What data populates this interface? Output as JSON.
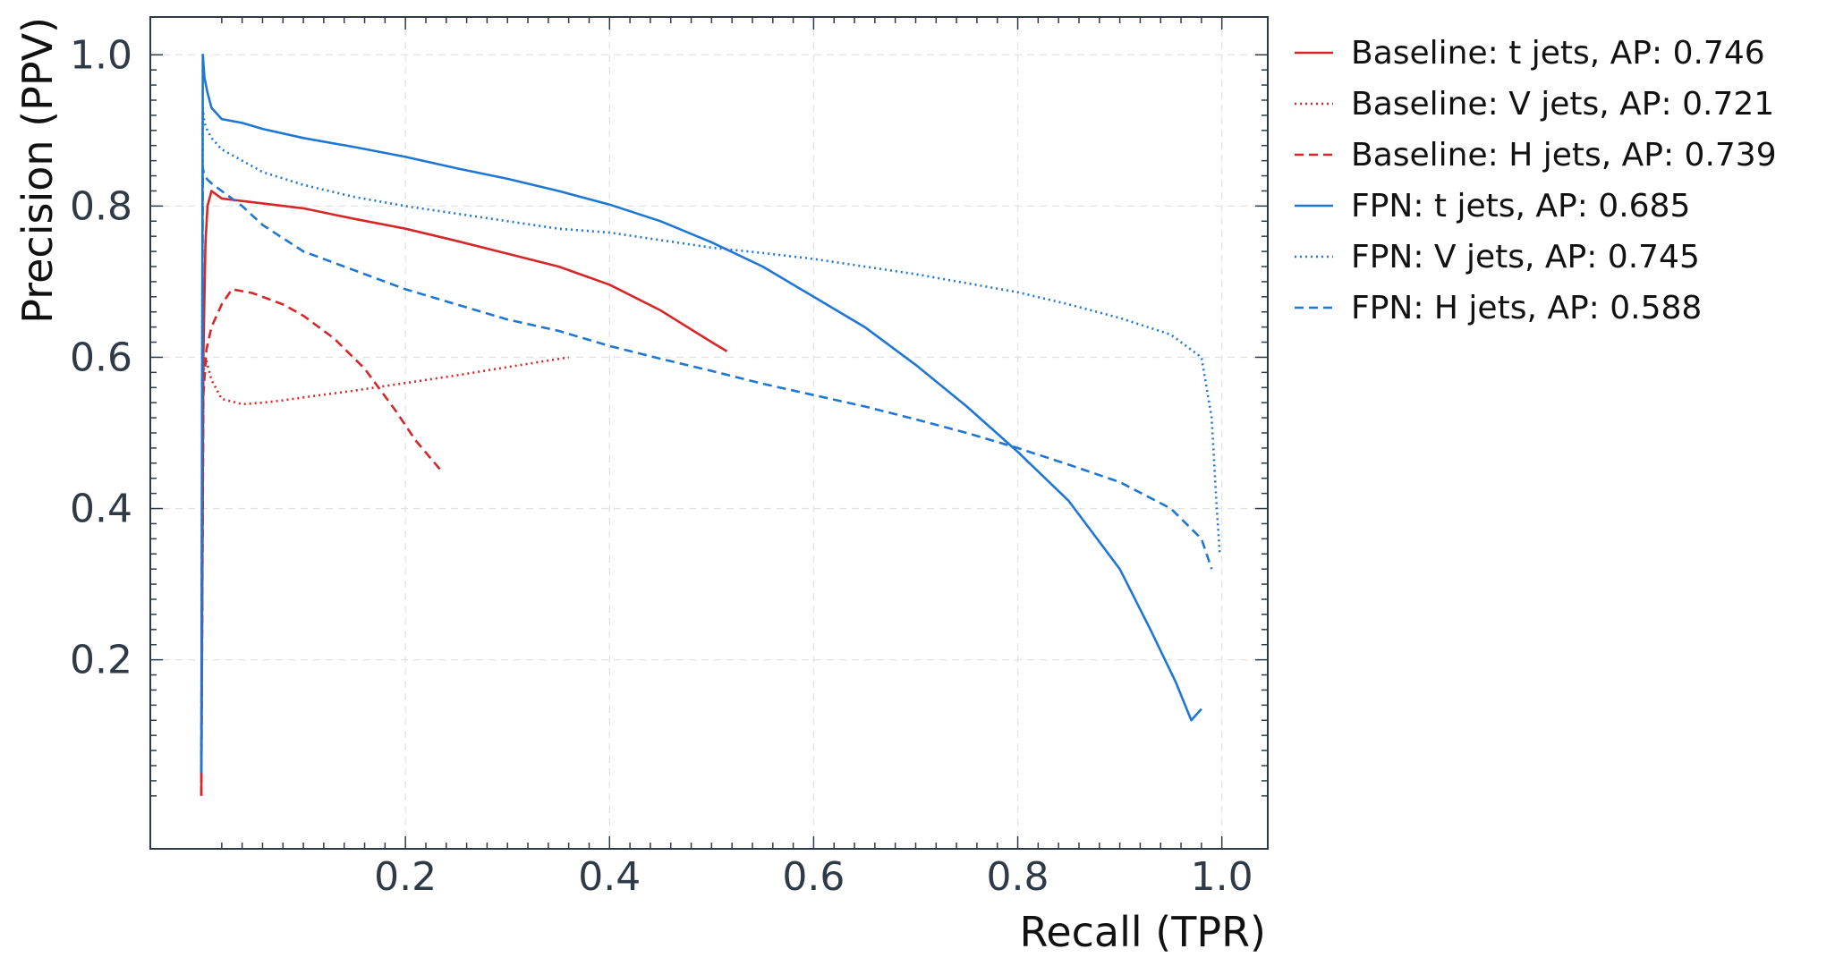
{
  "chart_data": {
    "type": "line",
    "title": "",
    "xlabel": "Recall (TPR)",
    "ylabel": "Precision (PPV)",
    "xlim": [
      -0.05,
      1.045
    ],
    "ylim": [
      -0.05,
      1.05
    ],
    "xticks": [
      0.2,
      0.4,
      0.6,
      0.8,
      1.0
    ],
    "xtick_labels": [
      "0.2",
      "0.4",
      "0.6",
      "0.8",
      "1.0"
    ],
    "yticks": [
      0.2,
      0.4,
      0.6,
      0.8,
      1.0
    ],
    "ytick_labels": [
      "0.2",
      "0.4",
      "0.6",
      "0.8",
      "1.0"
    ],
    "grid": true,
    "legend_position": "outside-right",
    "colors": {
      "baseline": "#d62728",
      "fpn": "#1f77d4"
    },
    "series": [
      {
        "name": "Baseline: t jets, AP: 0.746",
        "color": "#d62728",
        "style": "solid",
        "x": [
          0.0,
          0.002,
          0.004,
          0.006,
          0.01,
          0.02,
          0.05,
          0.1,
          0.15,
          0.2,
          0.25,
          0.3,
          0.35,
          0.4,
          0.45,
          0.5,
          0.515
        ],
        "y": [
          0.02,
          0.6,
          0.75,
          0.8,
          0.82,
          0.81,
          0.805,
          0.797,
          0.783,
          0.77,
          0.754,
          0.737,
          0.72,
          0.696,
          0.662,
          0.62,
          0.608
        ]
      },
      {
        "name": "Baseline: V jets, AP: 0.721",
        "color": "#d62728",
        "style": "dotted",
        "x": [
          0.0,
          0.002,
          0.004,
          0.006,
          0.01,
          0.02,
          0.04,
          0.06,
          0.08,
          0.1,
          0.15,
          0.2,
          0.25,
          0.3,
          0.36
        ],
        "y": [
          0.03,
          0.58,
          0.6,
          0.59,
          0.57,
          0.545,
          0.538,
          0.54,
          0.543,
          0.547,
          0.556,
          0.566,
          0.576,
          0.587,
          0.6
        ]
      },
      {
        "name": "Baseline: H jets, AP: 0.739",
        "color": "#d62728",
        "style": "dashed",
        "x": [
          0.0,
          0.002,
          0.005,
          0.01,
          0.02,
          0.03,
          0.05,
          0.08,
          0.1,
          0.13,
          0.16,
          0.19,
          0.21,
          0.235
        ],
        "y": [
          0.02,
          0.55,
          0.61,
          0.64,
          0.67,
          0.69,
          0.685,
          0.67,
          0.655,
          0.625,
          0.585,
          0.53,
          0.49,
          0.45
        ]
      },
      {
        "name": "FPN: t jets, AP: 0.685",
        "color": "#1f77d4",
        "style": "solid",
        "x": [
          0.0,
          0.0015,
          0.003,
          0.006,
          0.01,
          0.02,
          0.04,
          0.06,
          0.1,
          0.15,
          0.2,
          0.25,
          0.3,
          0.35,
          0.4,
          0.45,
          0.5,
          0.55,
          0.6,
          0.65,
          0.7,
          0.75,
          0.8,
          0.85,
          0.9,
          0.93,
          0.955,
          0.97,
          0.98
        ],
        "y": [
          0.05,
          1.0,
          0.97,
          0.95,
          0.93,
          0.915,
          0.91,
          0.902,
          0.89,
          0.878,
          0.865,
          0.85,
          0.836,
          0.82,
          0.802,
          0.78,
          0.752,
          0.72,
          0.68,
          0.64,
          0.59,
          0.535,
          0.475,
          0.41,
          0.32,
          0.24,
          0.17,
          0.12,
          0.135
        ]
      },
      {
        "name": "FPN: V jets, AP: 0.745",
        "color": "#1f77d4",
        "style": "dotted",
        "x": [
          0.0,
          0.0015,
          0.003,
          0.006,
          0.01,
          0.02,
          0.04,
          0.06,
          0.1,
          0.15,
          0.2,
          0.25,
          0.3,
          0.35,
          0.4,
          0.45,
          0.5,
          0.55,
          0.6,
          0.65,
          0.7,
          0.75,
          0.8,
          0.85,
          0.9,
          0.95,
          0.98,
          0.99,
          0.995,
          0.998
        ],
        "y": [
          0.05,
          0.93,
          0.91,
          0.9,
          0.89,
          0.875,
          0.86,
          0.845,
          0.828,
          0.812,
          0.8,
          0.79,
          0.78,
          0.77,
          0.765,
          0.755,
          0.745,
          0.738,
          0.73,
          0.72,
          0.71,
          0.698,
          0.686,
          0.67,
          0.652,
          0.63,
          0.6,
          0.52,
          0.4,
          0.34
        ]
      },
      {
        "name": "FPN: H jets, AP: 0.588",
        "color": "#1f77d4",
        "style": "dashed",
        "x": [
          0.0,
          0.0015,
          0.003,
          0.006,
          0.01,
          0.02,
          0.04,
          0.06,
          0.1,
          0.15,
          0.2,
          0.25,
          0.3,
          0.35,
          0.4,
          0.45,
          0.5,
          0.55,
          0.6,
          0.65,
          0.7,
          0.75,
          0.8,
          0.85,
          0.9,
          0.95,
          0.98,
          0.99
        ],
        "y": [
          0.05,
          0.85,
          0.84,
          0.835,
          0.83,
          0.82,
          0.8,
          0.775,
          0.74,
          0.715,
          0.69,
          0.67,
          0.65,
          0.635,
          0.615,
          0.598,
          0.582,
          0.565,
          0.55,
          0.535,
          0.518,
          0.5,
          0.48,
          0.458,
          0.435,
          0.4,
          0.36,
          0.32
        ]
      }
    ]
  }
}
